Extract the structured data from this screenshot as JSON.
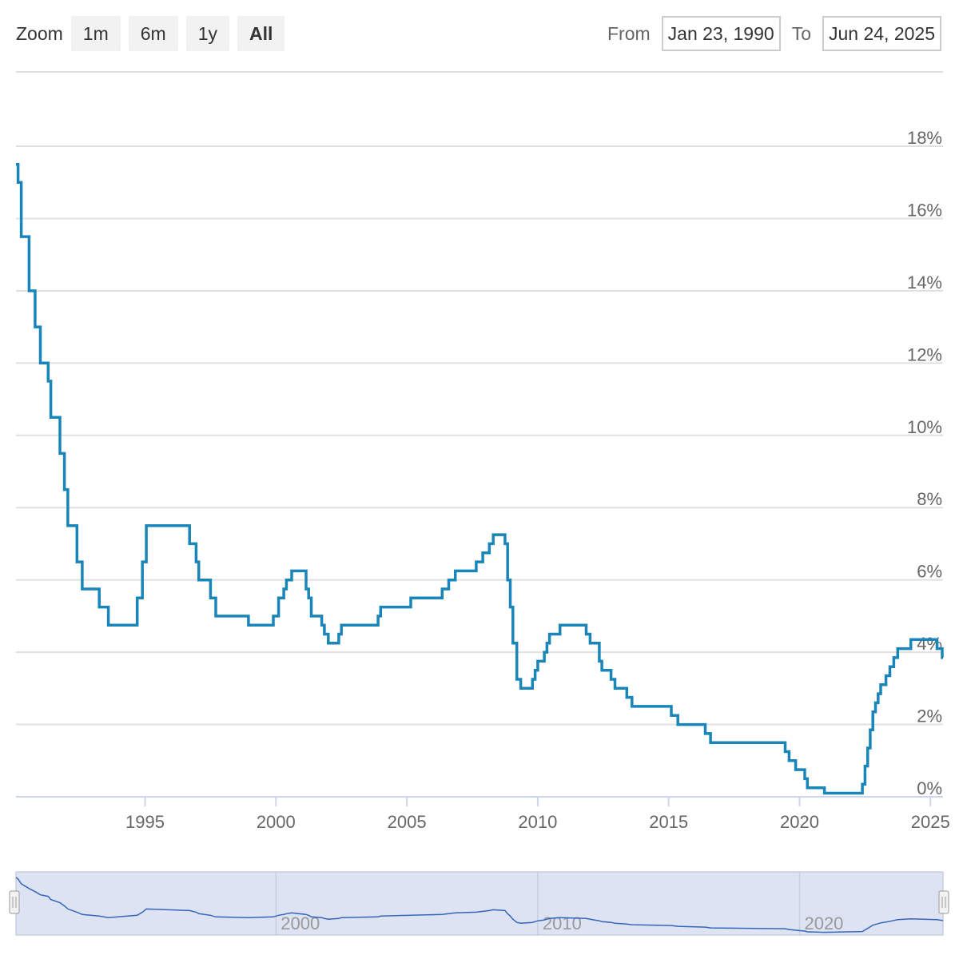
{
  "toolbar": {
    "zoom_label": "Zoom",
    "zoom_buttons": [
      {
        "label": "1m",
        "active": false
      },
      {
        "label": "6m",
        "active": false
      },
      {
        "label": "1y",
        "active": false
      },
      {
        "label": "All",
        "active": true
      }
    ]
  },
  "range": {
    "from_label": "From",
    "from_value": "Jan 23, 1990",
    "to_label": "To",
    "to_value": "Jun 24, 2025"
  },
  "colors": {
    "line": "#1a85b8",
    "navigator_line": "#3366bb",
    "navigator_fill": "#dde3f2",
    "grid": "#e0e0e0",
    "axis": "#ccd6eb"
  },
  "chart_data": {
    "type": "line",
    "step": true,
    "y_unit": "%",
    "ylim": [
      0,
      18
    ],
    "xlim": [
      1990.07,
      2025.48
    ],
    "y_ticks": [
      0,
      2,
      4,
      6,
      8,
      10,
      12,
      14,
      16,
      18
    ],
    "x_ticks": [
      1995,
      2000,
      2005,
      2010,
      2015,
      2020,
      2025
    ],
    "grid": true,
    "navigator_ticks": [
      2000,
      2010,
      2020
    ],
    "navigator_ylim": [
      0,
      18
    ],
    "series": [
      {
        "points": [
          [
            1990.07,
            17.5
          ],
          [
            1990.15,
            17.0
          ],
          [
            1990.27,
            15.5
          ],
          [
            1990.57,
            14.0
          ],
          [
            1990.8,
            13.0
          ],
          [
            1991.0,
            12.0
          ],
          [
            1991.3,
            11.5
          ],
          [
            1991.4,
            10.5
          ],
          [
            1991.75,
            9.5
          ],
          [
            1991.92,
            8.5
          ],
          [
            1992.05,
            7.5
          ],
          [
            1992.4,
            6.5
          ],
          [
            1992.6,
            5.75
          ],
          [
            1993.25,
            5.25
          ],
          [
            1993.6,
            4.75
          ],
          [
            1994.7,
            5.5
          ],
          [
            1994.9,
            6.5
          ],
          [
            1995.05,
            7.5
          ],
          [
            1996.7,
            7.0
          ],
          [
            1996.95,
            6.5
          ],
          [
            1997.05,
            6.0
          ],
          [
            1997.5,
            5.5
          ],
          [
            1997.7,
            5.0
          ],
          [
            1998.95,
            4.75
          ],
          [
            1999.9,
            5.0
          ],
          [
            2000.1,
            5.5
          ],
          [
            2000.3,
            5.75
          ],
          [
            2000.4,
            6.0
          ],
          [
            2000.6,
            6.25
          ],
          [
            2001.15,
            5.75
          ],
          [
            2001.25,
            5.5
          ],
          [
            2001.35,
            5.0
          ],
          [
            2001.75,
            4.75
          ],
          [
            2001.85,
            4.5
          ],
          [
            2002.0,
            4.25
          ],
          [
            2002.4,
            4.5
          ],
          [
            2002.5,
            4.75
          ],
          [
            2003.9,
            5.0
          ],
          [
            2004.0,
            5.25
          ],
          [
            2005.15,
            5.5
          ],
          [
            2006.35,
            5.75
          ],
          [
            2006.6,
            6.0
          ],
          [
            2006.85,
            6.25
          ],
          [
            2007.65,
            6.5
          ],
          [
            2007.9,
            6.75
          ],
          [
            2008.15,
            7.0
          ],
          [
            2008.3,
            7.25
          ],
          [
            2008.75,
            7.0
          ],
          [
            2008.85,
            6.0
          ],
          [
            2008.95,
            5.25
          ],
          [
            2009.05,
            4.25
          ],
          [
            2009.2,
            3.25
          ],
          [
            2009.35,
            3.0
          ],
          [
            2009.8,
            3.25
          ],
          [
            2009.9,
            3.5
          ],
          [
            2010.0,
            3.75
          ],
          [
            2010.25,
            4.0
          ],
          [
            2010.35,
            4.25
          ],
          [
            2010.45,
            4.5
          ],
          [
            2010.85,
            4.75
          ],
          [
            2011.85,
            4.5
          ],
          [
            2012.0,
            4.25
          ],
          [
            2012.35,
            3.75
          ],
          [
            2012.45,
            3.5
          ],
          [
            2012.8,
            3.25
          ],
          [
            2012.95,
            3.0
          ],
          [
            2013.4,
            2.75
          ],
          [
            2013.6,
            2.5
          ],
          [
            2015.1,
            2.25
          ],
          [
            2015.35,
            2.0
          ],
          [
            2016.4,
            1.75
          ],
          [
            2016.6,
            1.5
          ],
          [
            2019.45,
            1.25
          ],
          [
            2019.6,
            1.0
          ],
          [
            2019.85,
            0.75
          ],
          [
            2020.2,
            0.5
          ],
          [
            2020.3,
            0.25
          ],
          [
            2020.95,
            0.1
          ],
          [
            2022.4,
            0.35
          ],
          [
            2022.5,
            0.85
          ],
          [
            2022.6,
            1.35
          ],
          [
            2022.7,
            1.85
          ],
          [
            2022.8,
            2.35
          ],
          [
            2022.9,
            2.6
          ],
          [
            2023.0,
            2.85
          ],
          [
            2023.1,
            3.1
          ],
          [
            2023.3,
            3.35
          ],
          [
            2023.45,
            3.6
          ],
          [
            2023.6,
            3.85
          ],
          [
            2023.75,
            4.1
          ],
          [
            2024.25,
            4.35
          ],
          [
            2025.25,
            4.1
          ],
          [
            2025.45,
            3.85
          ],
          [
            2025.48,
            3.85
          ]
        ]
      }
    ]
  }
}
